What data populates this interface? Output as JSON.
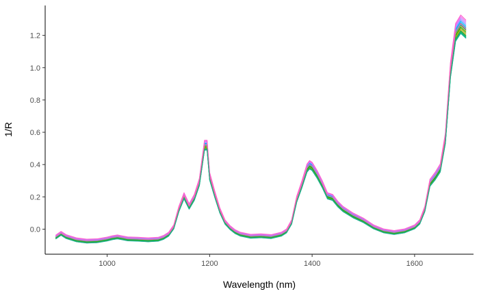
{
  "chart_data": {
    "type": "line",
    "xlabel": "Wavelength (nm)",
    "ylabel": "1/R",
    "xlim": [
      879,
      1715
    ],
    "ylim": [
      -0.155,
      1.385
    ],
    "x_ticks": [
      1000,
      1200,
      1400,
      1600
    ],
    "x_tick_labels": [
      "1000",
      "1200",
      "1400",
      "1600"
    ],
    "y_ticks": [
      0.0,
      0.2,
      0.4,
      0.6,
      0.8,
      1.0,
      1.2
    ],
    "y_tick_labels": [
      "0.0",
      "0.2",
      "0.4",
      "0.6",
      "0.8",
      "1.0",
      "1.2"
    ],
    "grid": false,
    "legend": "none",
    "x": [
      900,
      910,
      920,
      940,
      960,
      980,
      1000,
      1010,
      1020,
      1030,
      1040,
      1060,
      1080,
      1100,
      1110,
      1120,
      1130,
      1140,
      1150,
      1160,
      1170,
      1180,
      1190,
      1195,
      1200,
      1210,
      1220,
      1230,
      1240,
      1250,
      1260,
      1280,
      1300,
      1320,
      1340,
      1350,
      1360,
      1370,
      1380,
      1390,
      1395,
      1400,
      1410,
      1420,
      1430,
      1440,
      1450,
      1460,
      1480,
      1500,
      1520,
      1540,
      1560,
      1580,
      1600,
      1610,
      1620,
      1630,
      1640,
      1650,
      1660,
      1670,
      1680,
      1690,
      1700
    ],
    "base_values": [
      -0.052,
      -0.03,
      -0.05,
      -0.07,
      -0.078,
      -0.076,
      -0.065,
      -0.057,
      -0.052,
      -0.058,
      -0.064,
      -0.066,
      -0.07,
      -0.066,
      -0.055,
      -0.035,
      0.01,
      0.12,
      0.2,
      0.135,
      0.19,
      0.285,
      0.51,
      0.51,
      0.32,
      0.21,
      0.11,
      0.04,
      0.005,
      -0.02,
      -0.035,
      -0.048,
      -0.045,
      -0.05,
      -0.035,
      -0.015,
      0.04,
      0.18,
      0.27,
      0.37,
      0.39,
      0.38,
      0.33,
      0.27,
      0.2,
      0.19,
      0.15,
      0.12,
      0.08,
      0.05,
      0.01,
      -0.015,
      -0.025,
      -0.015,
      0.01,
      0.04,
      0.12,
      0.28,
      0.32,
      0.37,
      0.55,
      0.97,
      1.2,
      1.25,
      1.22
    ],
    "series": [
      {
        "color": "#F8766D",
        "offset": 0.01
      },
      {
        "color": "#E68613",
        "offset": 0.005
      },
      {
        "color": "#CD9600",
        "offset": 0.0
      },
      {
        "color": "#ABA300",
        "offset": -0.005
      },
      {
        "color": "#7CAE00",
        "offset": -0.01
      },
      {
        "color": "#0CB702",
        "offset": 0.0
      },
      {
        "color": "#00BE67",
        "offset": -0.015
      },
      {
        "color": "#00C19A",
        "offset": -0.02
      },
      {
        "color": "#00BFC4",
        "offset": 0.008
      },
      {
        "color": "#00B8E7",
        "offset": 0.015
      },
      {
        "color": "#00A9FF",
        "offset": 0.02
      },
      {
        "color": "#8494FF",
        "offset": 0.025
      },
      {
        "color": "#C77CFF",
        "offset": 0.03
      },
      {
        "color": "#ED68ED",
        "offset": 0.035
      },
      {
        "color": "#FF61CC",
        "offset": 0.04
      },
      {
        "color": "#FF68A1",
        "offset": 0.012
      },
      {
        "color": "#2FA84F",
        "offset": -0.012
      },
      {
        "color": "#23A98C",
        "offset": -0.018
      }
    ]
  }
}
